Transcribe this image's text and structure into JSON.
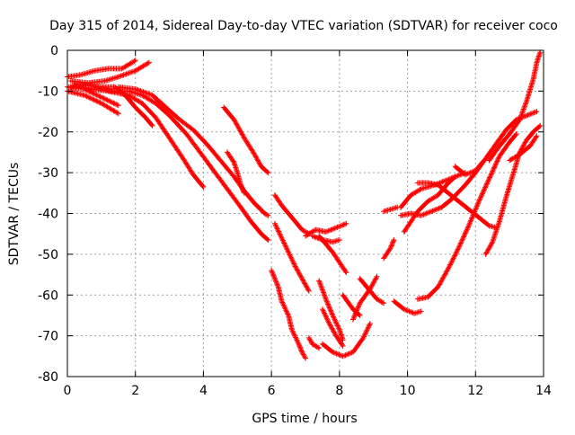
{
  "chart_data": {
    "type": "scatter",
    "title": "Day 315 of 2014, Sidereal Day-to-day VTEC variation (SDTVAR) for receiver coco",
    "xlabel": "GPS time / hours",
    "ylabel": "SDTVAR / TECUs",
    "xlim": [
      0,
      14
    ],
    "ylim": [
      -80,
      0
    ],
    "xticks": [
      "0",
      "2",
      "4",
      "6",
      "8",
      "10",
      "12",
      "14"
    ],
    "yticks": [
      "0",
      "-10",
      "-20",
      "-30",
      "-40",
      "-50",
      "-60",
      "-70",
      "-80"
    ],
    "grid": true,
    "legend": "none",
    "marker": "plus",
    "color": "#ff0000",
    "tracks": [
      [
        [
          0.0,
          -10.0
        ],
        [
          0.5,
          -11.0
        ],
        [
          1.0,
          -13.0
        ],
        [
          1.5,
          -15.5
        ]
      ],
      [
        [
          0.0,
          -9.0
        ],
        [
          0.5,
          -9.5
        ],
        [
          1.0,
          -11.5
        ],
        [
          1.5,
          -13.5
        ]
      ],
      [
        [
          0.0,
          -6.5
        ],
        [
          0.4,
          -6.0
        ],
        [
          0.8,
          -5.0
        ],
        [
          1.2,
          -4.5
        ],
        [
          1.6,
          -4.5
        ],
        [
          2.0,
          -2.5
        ]
      ],
      [
        [
          0.1,
          -7.5
        ],
        [
          0.6,
          -8.0
        ],
        [
          1.1,
          -7.5
        ],
        [
          1.5,
          -6.5
        ],
        [
          2.0,
          -5.0
        ],
        [
          2.4,
          -3.0
        ]
      ],
      [
        [
          0.1,
          -9.0
        ],
        [
          0.5,
          -8.5
        ],
        [
          1.0,
          -9.0
        ],
        [
          1.4,
          -9.0
        ],
        [
          1.7,
          -11.0
        ],
        [
          2.0,
          -14.0
        ],
        [
          2.3,
          -16.5
        ],
        [
          2.5,
          -18.5
        ]
      ],
      [
        [
          0.2,
          -8.5
        ],
        [
          0.7,
          -9.5
        ],
        [
          1.2,
          -10.0
        ],
        [
          1.5,
          -10.5
        ],
        [
          1.8,
          -11.0
        ],
        [
          2.2,
          -13.0
        ],
        [
          2.6,
          -16.5
        ],
        [
          3.0,
          -21.5
        ],
        [
          3.4,
          -26.5
        ],
        [
          3.7,
          -30.5
        ],
        [
          4.0,
          -33.5
        ]
      ],
      [
        [
          0.8,
          -9.0
        ],
        [
          1.3,
          -10.0
        ],
        [
          1.8,
          -10.0
        ],
        [
          2.2,
          -11.0
        ],
        [
          2.6,
          -13.0
        ],
        [
          3.0,
          -16.0
        ],
        [
          3.5,
          -20.5
        ],
        [
          3.9,
          -25.0
        ],
        [
          4.3,
          -29.5
        ],
        [
          4.7,
          -34.0
        ],
        [
          5.1,
          -38.5
        ],
        [
          5.4,
          -42.0
        ],
        [
          5.7,
          -45.0
        ],
        [
          5.9,
          -46.5
        ]
      ],
      [
        [
          1.5,
          -9.0
        ],
        [
          2.0,
          -9.5
        ],
        [
          2.5,
          -11.0
        ],
        [
          2.9,
          -14.0
        ],
        [
          3.3,
          -17.0
        ],
        [
          3.7,
          -19.5
        ],
        [
          4.1,
          -23.0
        ],
        [
          4.5,
          -27.0
        ],
        [
          4.9,
          -31.0
        ],
        [
          5.2,
          -34.5
        ],
        [
          5.5,
          -37.5
        ],
        [
          5.8,
          -40.0
        ],
        [
          5.9,
          -40.5
        ]
      ],
      [
        [
          4.6,
          -14.0
        ],
        [
          4.9,
          -17.0
        ],
        [
          5.2,
          -21.5
        ],
        [
          5.5,
          -25.5
        ],
        [
          5.7,
          -28.5
        ],
        [
          5.9,
          -30.0
        ]
      ],
      [
        [
          4.7,
          -25.0
        ],
        [
          4.9,
          -27.5
        ],
        [
          5.0,
          -30.0
        ],
        [
          5.1,
          -33.0
        ],
        [
          5.2,
          -35.0
        ]
      ],
      [
        [
          6.1,
          -35.5
        ],
        [
          6.3,
          -38.0
        ],
        [
          6.5,
          -40.0
        ],
        [
          6.7,
          -42.0
        ],
        [
          6.9,
          -44.0
        ],
        [
          7.1,
          -45.0
        ]
      ],
      [
        [
          6.1,
          -42.5
        ],
        [
          6.3,
          -46.0
        ],
        [
          6.5,
          -49.5
        ],
        [
          6.7,
          -53.0
        ],
        [
          6.9,
          -56.0
        ],
        [
          7.1,
          -59.0
        ]
      ],
      [
        [
          6.0,
          -54.0
        ],
        [
          6.2,
          -58.0
        ],
        [
          6.3,
          -61.5
        ],
        [
          6.5,
          -65.0
        ],
        [
          6.6,
          -68.5
        ],
        [
          6.8,
          -72.0
        ],
        [
          6.9,
          -74.0
        ],
        [
          7.0,
          -75.5
        ]
      ],
      [
        [
          7.1,
          -70.5
        ],
        [
          7.2,
          -72.0
        ],
        [
          7.4,
          -73.0
        ]
      ],
      [
        [
          7.5,
          -63.5
        ],
        [
          7.7,
          -67.0
        ],
        [
          7.9,
          -70.0
        ],
        [
          8.1,
          -72.5
        ]
      ],
      [
        [
          7.4,
          -56.5
        ],
        [
          7.6,
          -61.0
        ],
        [
          7.8,
          -65.0
        ],
        [
          8.0,
          -68.5
        ],
        [
          8.1,
          -71.0
        ]
      ],
      [
        [
          7.2,
          -45.5
        ],
        [
          7.5,
          -46.5
        ],
        [
          7.8,
          -47.0
        ],
        [
          8.0,
          -46.5
        ]
      ],
      [
        [
          7.0,
          -45.5
        ],
        [
          7.3,
          -44.0
        ],
        [
          7.6,
          -44.5
        ],
        [
          7.9,
          -43.5
        ],
        [
          8.2,
          -42.5
        ]
      ],
      [
        [
          7.4,
          -45.5
        ],
        [
          7.6,
          -47.5
        ],
        [
          7.8,
          -49.5
        ],
        [
          8.0,
          -52.0
        ],
        [
          8.2,
          -54.5
        ]
      ],
      [
        [
          8.1,
          -60.0
        ],
        [
          8.4,
          -63.5
        ],
        [
          8.6,
          -65.0
        ]
      ],
      [
        [
          8.6,
          -56.0
        ],
        [
          8.9,
          -59.0
        ],
        [
          9.1,
          -61.0
        ],
        [
          9.3,
          -62.0
        ]
      ],
      [
        [
          9.6,
          -61.5
        ],
        [
          9.9,
          -63.5
        ],
        [
          10.2,
          -64.5
        ],
        [
          10.4,
          -64.0
        ]
      ],
      [
        [
          7.5,
          -72.0
        ],
        [
          7.8,
          -74.0
        ],
        [
          8.1,
          -75.0
        ],
        [
          8.4,
          -74.0
        ],
        [
          8.7,
          -70.5
        ],
        [
          8.9,
          -67.0
        ]
      ],
      [
        [
          8.4,
          -66.0
        ],
        [
          8.6,
          -62.0
        ],
        [
          8.9,
          -58.5
        ],
        [
          9.1,
          -55.5
        ]
      ],
      [
        [
          9.3,
          -51.0
        ],
        [
          9.5,
          -48.5
        ],
        [
          9.6,
          -46.5
        ]
      ],
      [
        [
          9.3,
          -39.5
        ],
        [
          9.5,
          -39.0
        ],
        [
          9.7,
          -38.5
        ]
      ],
      [
        [
          9.8,
          -38.5
        ],
        [
          10.1,
          -35.5
        ],
        [
          10.4,
          -34.0
        ],
        [
          10.8,
          -33.0
        ],
        [
          11.1,
          -32.0
        ],
        [
          11.4,
          -31.0
        ],
        [
          11.7,
          -30.0
        ]
      ],
      [
        [
          9.8,
          -40.5
        ],
        [
          10.1,
          -40.0
        ],
        [
          10.4,
          -40.5
        ],
        [
          10.7,
          -39.5
        ],
        [
          11.0,
          -38.5
        ],
        [
          11.3,
          -36.5
        ],
        [
          11.7,
          -33.0
        ],
        [
          12.0,
          -30.0
        ],
        [
          12.3,
          -26.5
        ],
        [
          12.6,
          -23.0
        ],
        [
          12.9,
          -19.5
        ],
        [
          13.2,
          -17.0
        ],
        [
          13.5,
          -16.0
        ],
        [
          13.8,
          -15.0
        ]
      ],
      [
        [
          9.9,
          -44.5
        ],
        [
          10.1,
          -42.0
        ],
        [
          10.3,
          -39.5
        ],
        [
          10.6,
          -37.0
        ],
        [
          10.9,
          -35.5
        ],
        [
          11.2,
          -32.5
        ],
        [
          11.4,
          -31.0
        ]
      ],
      [
        [
          10.3,
          -32.5
        ],
        [
          10.6,
          -32.5
        ],
        [
          10.9,
          -33.0
        ],
        [
          11.2,
          -35.0
        ],
        [
          11.5,
          -37.0
        ],
        [
          11.8,
          -39.0
        ],
        [
          12.1,
          -41.0
        ],
        [
          12.4,
          -43.0
        ],
        [
          12.6,
          -43.5
        ]
      ],
      [
        [
          10.3,
          -61.0
        ],
        [
          10.6,
          -60.5
        ],
        [
          10.9,
          -58.0
        ],
        [
          11.2,
          -53.5
        ],
        [
          11.5,
          -48.5
        ],
        [
          11.8,
          -43.0
        ],
        [
          12.1,
          -37.0
        ],
        [
          12.4,
          -31.5
        ],
        [
          12.7,
          -26.0
        ],
        [
          13.0,
          -22.5
        ],
        [
          13.2,
          -20.5
        ]
      ],
      [
        [
          11.4,
          -28.5
        ],
        [
          11.7,
          -30.5
        ],
        [
          12.0,
          -29.5
        ],
        [
          12.2,
          -27.5
        ]
      ],
      [
        [
          12.3,
          -50.0
        ],
        [
          12.5,
          -47.0
        ],
        [
          12.7,
          -42.0
        ],
        [
          12.9,
          -36.0
        ],
        [
          13.1,
          -30.5
        ],
        [
          13.3,
          -25.0
        ],
        [
          13.5,
          -22.0
        ],
        [
          13.7,
          -20.0
        ],
        [
          13.9,
          -18.5
        ]
      ],
      [
        [
          13.0,
          -27.0
        ],
        [
          13.3,
          -25.5
        ],
        [
          13.6,
          -23.5
        ],
        [
          13.8,
          -21.0
        ]
      ],
      [
        [
          12.4,
          -27.0
        ],
        [
          12.7,
          -23.5
        ],
        [
          13.0,
          -20.5
        ],
        [
          13.3,
          -17.0
        ],
        [
          13.5,
          -12.5
        ],
        [
          13.7,
          -7.0
        ],
        [
          13.8,
          -3.0
        ],
        [
          13.9,
          -0.5
        ]
      ]
    ]
  }
}
